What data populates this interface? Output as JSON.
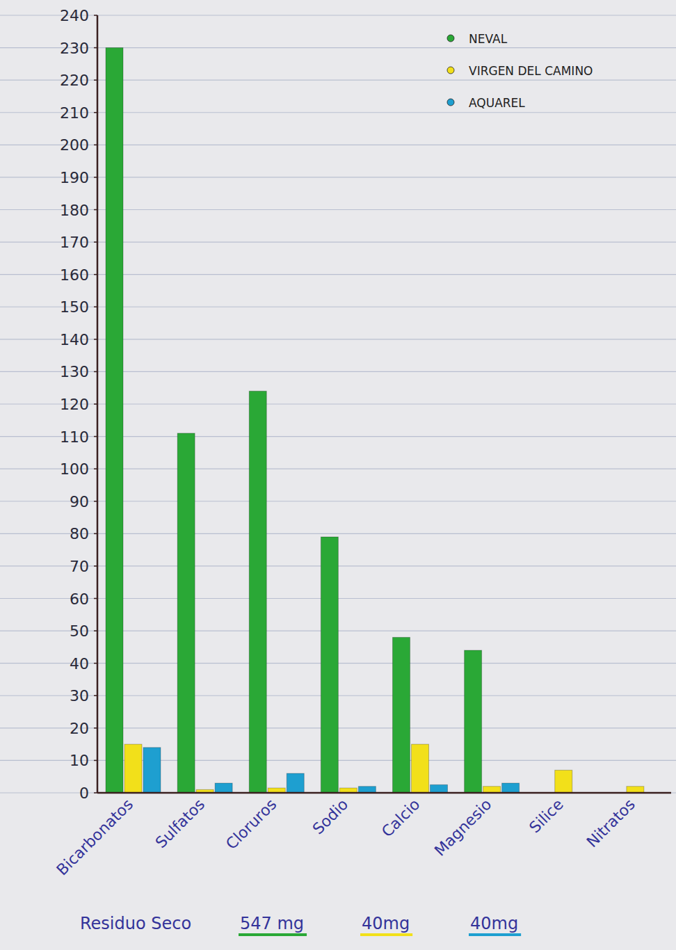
{
  "chart_data": {
    "type": "bar",
    "categories": [
      "Bicarbonatos",
      "Sulfatos",
      "Cloruros",
      "Sodio",
      "Calcio",
      "Magnesio",
      "Silice",
      "Nitratos"
    ],
    "series": [
      {
        "name": "NEVAL",
        "color": "#2aa836",
        "values": [
          230,
          111,
          124,
          79,
          48,
          44,
          null,
          null
        ]
      },
      {
        "name": "VIRGEN DEL CAMINO",
        "color": "#f2e01a",
        "values": [
          15,
          1,
          1.5,
          1.5,
          15,
          2,
          7,
          2
        ]
      },
      {
        "name": "AQUAREL",
        "color": "#1e9fd0",
        "values": [
          14,
          3,
          6,
          2,
          2.5,
          3,
          null,
          null
        ]
      }
    ],
    "ylim": [
      0,
      240
    ],
    "yticks": [
      0,
      10,
      20,
      30,
      40,
      50,
      60,
      70,
      80,
      90,
      100,
      110,
      120,
      130,
      140,
      150,
      160,
      170,
      180,
      190,
      200,
      210,
      220,
      230,
      240
    ],
    "grid": true,
    "legend": "top-right",
    "dry_residue": {
      "label": "Residuo Seco",
      "values": [
        547,
        40,
        40
      ],
      "value_labels": [
        "547 mg",
        "40mg",
        "40mg"
      ]
    }
  }
}
